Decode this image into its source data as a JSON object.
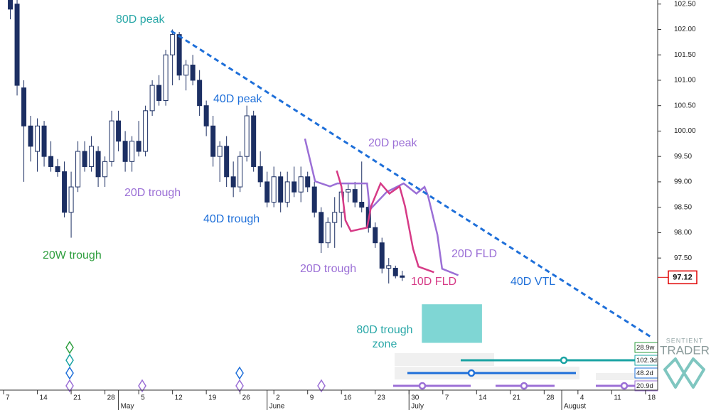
{
  "chart_data": {
    "type": "candlestick",
    "x": [
      1,
      2,
      3,
      4,
      5,
      6,
      7,
      8,
      9,
      10,
      11,
      12,
      13,
      14,
      15,
      16,
      17,
      18,
      19,
      20,
      21,
      22,
      23,
      24,
      25,
      26,
      27,
      28,
      29,
      30,
      31,
      32,
      33,
      34,
      35,
      36,
      37,
      38,
      39,
      40,
      41,
      42,
      43,
      44,
      45,
      46,
      47,
      48,
      49,
      50,
      51,
      52,
      53,
      54,
      55,
      56,
      57,
      58,
      59
    ],
    "open": [
      102.6,
      102.5,
      100.85,
      100.1,
      99.6,
      100.1,
      99.5,
      99.3,
      99.2,
      98.4,
      98.9,
      99.6,
      99.3,
      99.6,
      99.1,
      99.4,
      100.2,
      99.8,
      99.4,
      99.8,
      99.6,
      100.4,
      100.9,
      100.6,
      101.5,
      101.9,
      101.1,
      101.3,
      101.0,
      100.5,
      100.1,
      99.5,
      99.7,
      99.1,
      98.9,
      99.5,
      100.3,
      99.3,
      99.0,
      98.6,
      99.1,
      98.6,
      99.0,
      98.8,
      99.1,
      98.9,
      98.4,
      97.8,
      98.2,
      98.4,
      98.8,
      98.85,
      98.6,
      98.5,
      98.1,
      97.8,
      97.3,
      97.3,
      97.15
    ],
    "high": [
      102.65,
      102.6,
      101.0,
      100.3,
      100.25,
      100.2,
      99.8,
      99.45,
      99.4,
      99.2,
      99.8,
      99.8,
      99.9,
      99.7,
      99.5,
      100.4,
      100.4,
      100.0,
      99.9,
      100.2,
      100.5,
      101.0,
      101.1,
      101.6,
      102.0,
      101.95,
      101.4,
      101.5,
      101.2,
      100.6,
      100.3,
      99.8,
      99.9,
      99.4,
      99.6,
      100.5,
      100.4,
      99.6,
      99.2,
      99.3,
      99.2,
      99.2,
      99.3,
      99.3,
      99.2,
      99.0,
      98.5,
      98.3,
      98.7,
      98.9,
      98.95,
      99.0,
      99.4,
      98.7,
      98.2,
      97.9,
      97.5,
      97.35,
      97.25
    ],
    "low": [
      102.2,
      100.7,
      99.0,
      99.4,
      99.2,
      99.3,
      99.2,
      99.1,
      98.3,
      97.9,
      98.8,
      99.2,
      99.2,
      98.9,
      98.9,
      99.3,
      99.6,
      99.2,
      99.2,
      99.5,
      99.5,
      100.3,
      100.5,
      100.5,
      100.9,
      101.0,
      100.8,
      100.9,
      100.3,
      99.9,
      99.3,
      99.0,
      98.9,
      98.7,
      98.8,
      99.4,
      99.2,
      98.9,
      98.5,
      98.5,
      98.4,
      98.5,
      98.7,
      98.6,
      98.8,
      98.3,
      97.6,
      97.7,
      97.7,
      98.1,
      98.6,
      98.5,
      98.4,
      98.0,
      97.7,
      97.2,
      97.0,
      97.1,
      97.05
    ],
    "close": [
      102.4,
      100.9,
      100.1,
      99.7,
      100.1,
      99.5,
      99.3,
      99.2,
      98.4,
      98.9,
      99.6,
      99.3,
      99.7,
      99.1,
      99.4,
      100.2,
      99.8,
      99.4,
      99.8,
      99.6,
      100.4,
      100.9,
      100.6,
      101.5,
      101.9,
      101.1,
      101.3,
      101.0,
      100.5,
      100.1,
      99.5,
      99.7,
      99.1,
      98.9,
      99.5,
      100.3,
      99.3,
      99.0,
      98.6,
      99.1,
      98.6,
      99.0,
      98.8,
      99.1,
      98.9,
      98.4,
      97.8,
      98.2,
      98.4,
      98.8,
      98.85,
      98.6,
      98.5,
      98.1,
      97.8,
      97.3,
      97.35,
      97.15,
      97.12
    ],
    "up_color": "#ffffff",
    "down_color": "#1c2f63",
    "xlim": [
      -0.53,
      96.8
    ],
    "ylim": [
      94.9,
      102.58
    ],
    "xticks": [
      {
        "value": 0,
        "label": "7"
      },
      {
        "value": 5,
        "label": "14"
      },
      {
        "value": 10,
        "label": "21"
      },
      {
        "value": 15,
        "label": "28"
      },
      {
        "value": 20,
        "label": "5"
      },
      {
        "value": 25,
        "label": "12"
      },
      {
        "value": 30,
        "label": "19"
      },
      {
        "value": 35,
        "label": "26"
      },
      {
        "value": 40,
        "label": "2"
      },
      {
        "value": 45,
        "label": "9"
      },
      {
        "value": 50,
        "label": "16"
      },
      {
        "value": 55,
        "label": "23"
      },
      {
        "value": 60,
        "label": "30"
      },
      {
        "value": 65,
        "label": "7"
      },
      {
        "value": 70,
        "label": "14"
      },
      {
        "value": 75,
        "label": "21"
      },
      {
        "value": 80,
        "label": "28"
      },
      {
        "value": 85,
        "label": "4"
      },
      {
        "value": 90,
        "label": "11"
      },
      {
        "value": 95,
        "label": "18"
      }
    ],
    "month_ticks": [
      {
        "value": 17,
        "label": "May"
      },
      {
        "value": 39,
        "label": "June"
      },
      {
        "value": 60,
        "label": "July"
      },
      {
        "value": 82.6,
        "label": "August"
      }
    ],
    "yticks": [
      {
        "value": 102.5,
        "label": "102.50"
      },
      {
        "value": 102,
        "label": "102.00"
      },
      {
        "value": 101.5,
        "label": "101.50"
      },
      {
        "value": 101,
        "label": "101.00"
      },
      {
        "value": 100.5,
        "label": "100.50"
      },
      {
        "value": 100,
        "label": "100.00"
      },
      {
        "value": 99.5,
        "label": "99.50"
      },
      {
        "value": 99,
        "label": "99.00"
      },
      {
        "value": 98.5,
        "label": "98.50"
      },
      {
        "value": 98,
        "label": "98.00"
      },
      {
        "value": 97.5,
        "label": "97.50"
      }
    ],
    "last_price": 97.12,
    "last_price_color": "#e00000",
    "overlays": [
      {
        "name": "20D FLD",
        "color": "#9b6fd6",
        "dashed": false,
        "x": [
          44.6,
          46.1,
          48.3,
          49.4,
          53.8,
          54.2,
          56.7,
          59.2,
          61.1,
          62.3,
          62.8,
          64.2,
          64.9,
          67.3
        ],
        "values": [
          99.85,
          99.01,
          98.91,
          98.97,
          98.97,
          98.45,
          98.8,
          98.97,
          98.77,
          98.9,
          98.73,
          97.96,
          97.29,
          97.16
        ]
      },
      {
        "name": "10D FLD",
        "color": "#d63a86",
        "dashed": false,
        "x": [
          49.3,
          50.0,
          50.6,
          51.4,
          53.8,
          54.4,
          55.8,
          57.1,
          58.6,
          59.4,
          60.6,
          61.4,
          63.7
        ],
        "values": [
          99.22,
          98.91,
          98.24,
          98.03,
          98.1,
          98.52,
          98.97,
          98.77,
          98.91,
          98.52,
          97.68,
          97.33,
          97.22
        ]
      },
      {
        "name": "40D VTL",
        "color": "#1e6fd9",
        "dashed": true,
        "x": [
          24.8,
          96.0
        ],
        "values": [
          101.97,
          95.93
        ]
      }
    ],
    "zone": {
      "lines": [
        "80D trough",
        "zone"
      ],
      "color": "#7fd6d4",
      "x": [
        61.9,
        70.8
      ],
      "values": [
        96.59,
        95.83
      ]
    },
    "annotations": [
      {
        "text": "80D peak",
        "color": "#2aa8a8"
      },
      {
        "text": "40D peak",
        "color": "#1e6fd9"
      },
      {
        "text": "20D peak",
        "color": "#9b6fd6"
      },
      {
        "text": "20D trough",
        "color": "#9b6fd6"
      },
      {
        "text": "40D trough",
        "color": "#1e6fd9"
      },
      {
        "text": "20W trough",
        "color": "#2e9e3e"
      },
      {
        "text": "20D trough",
        "color": "#9b6fd6"
      }
    ],
    "cycles": [
      {
        "label": "28.9w",
        "color": "#2e9e3e"
      },
      {
        "label": "102.3d",
        "color": "#1aa3a3"
      },
      {
        "label": "48.2d",
        "color": "#1e6fd9"
      },
      {
        "label": "20.9d",
        "color": "#9b6fd6"
      }
    ],
    "logo": [
      "SENTIENT",
      "TRADER"
    ]
  }
}
